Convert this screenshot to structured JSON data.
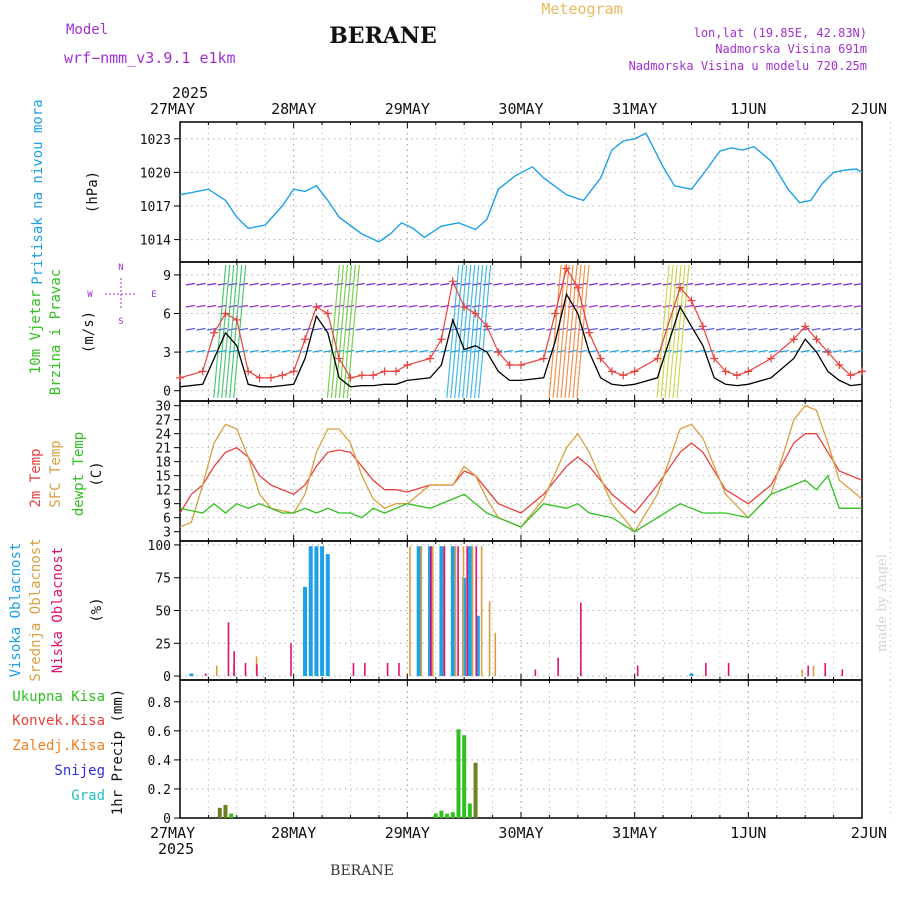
{
  "header": {
    "model_label": "Model",
    "model_name": "wrf−nmm_v3.9.1 e1km",
    "title": "BERANE",
    "subtitle": "Meteogram",
    "lonlat": "lon,lat (19.85E, 42.83N)",
    "elevation": "Nadmorska Visina 691m",
    "model_elevation": "Nadmorska Visina u modelu 720.25m",
    "year_top": "2025",
    "year_bottom": "2025",
    "footer_station": "BERANE",
    "credit": "made by Angel"
  },
  "colors": {
    "pressure": "#1ca0e6",
    "temp2m": "#e8403c",
    "sfc_temp": "#d8a040",
    "dewpoint": "#30c020",
    "high_cloud": "#1ca0e6",
    "mid_cloud": "#d8a040",
    "low_cloud": "#e01070",
    "total_precip": "#30c020",
    "conv_precip": "#e8403c",
    "frozen_precip": "#f08020",
    "snow": "#3030e0",
    "hail": "#20c0c0",
    "wind_speed": "#000000",
    "gust": "#e8403c",
    "label_purple": "#a030d0"
  },
  "chart_data": [
    {
      "type": "line",
      "title": "",
      "ylabel_parts": [
        "Pritisak na nivou mora",
        "(hPa)"
      ],
      "x_tick_labels": [
        "27MAY",
        "28MAY",
        "29MAY",
        "30MAY",
        "31MAY",
        "1JUN",
        "2JUN"
      ],
      "ylim": [
        1012,
        1024.5
      ],
      "yticks": [
        1014,
        1017,
        1020,
        1023
      ],
      "grid": true,
      "series": [
        {
          "key": "pressure",
          "x": [
            0,
            0.25,
            0.4,
            0.5,
            0.6,
            0.75,
            0.9,
            1.0,
            1.1,
            1.2,
            1.3,
            1.4,
            1.6,
            1.75,
            1.85,
            1.95,
            2.05,
            2.15,
            2.3,
            2.45,
            2.6,
            2.7,
            2.8,
            2.95,
            3.1,
            3.2,
            3.4,
            3.55,
            3.7,
            3.8,
            3.9,
            4.0,
            4.1,
            4.15,
            4.25,
            4.35,
            4.5,
            4.6,
            4.75,
            4.85,
            4.95,
            5.05,
            5.2,
            5.35,
            5.45,
            5.55,
            5.65,
            5.75,
            5.85,
            5.95,
            6.0
          ],
          "values": [
            1018.0,
            1018.5,
            1017.5,
            1016,
            1015,
            1015.3,
            1017,
            1018.5,
            1018.3,
            1018.8,
            1017.5,
            1016,
            1014.5,
            1013.8,
            1014.5,
            1015.5,
            1015.0,
            1014.2,
            1015.2,
            1015.5,
            1014.9,
            1015.8,
            1018.5,
            1019.7,
            1020.5,
            1019.5,
            1018.0,
            1017.5,
            1019.5,
            1022.0,
            1022.8,
            1023.0,
            1023.5,
            1022.5,
            1020.5,
            1018.8,
            1018.5,
            1019.8,
            1021.9,
            1022.2,
            1022.0,
            1022.3,
            1021.0,
            1018.5,
            1017.3,
            1017.5,
            1019.0,
            1020.0,
            1020.2,
            1020.3,
            1020.0
          ]
        }
      ]
    },
    {
      "type": "line",
      "title": "",
      "ylabel_parts": [
        "10m Vjetar",
        "Brzina i Pravac",
        "(m/s)"
      ],
      "compass": [
        "N",
        "W",
        "E",
        "S"
      ],
      "ylim": [
        -0.8,
        10
      ],
      "yticks": [
        0,
        3,
        6,
        9
      ],
      "grid": true,
      "series": [
        {
          "key": "wind_speed",
          "x": [
            0,
            0.2,
            0.3,
            0.4,
            0.5,
            0.6,
            0.7,
            0.8,
            0.9,
            1.0,
            1.1,
            1.2,
            1.3,
            1.4,
            1.5,
            1.6,
            1.7,
            1.8,
            1.9,
            2.0,
            2.2,
            2.3,
            2.4,
            2.5,
            2.6,
            2.7,
            2.8,
            2.9,
            3.0,
            3.2,
            3.3,
            3.4,
            3.5,
            3.6,
            3.7,
            3.8,
            3.9,
            4.0,
            4.2,
            4.4,
            4.5,
            4.6,
            4.7,
            4.8,
            4.9,
            5.0,
            5.2,
            5.4,
            5.5,
            5.6,
            5.7,
            5.8,
            5.9,
            6.0
          ],
          "values": [
            0.3,
            0.5,
            2.5,
            4.5,
            3.5,
            0.5,
            0.3,
            0.3,
            0.4,
            0.5,
            2.5,
            5.8,
            4.5,
            1.0,
            0.3,
            0.4,
            0.4,
            0.5,
            0.5,
            0.8,
            1.0,
            2.0,
            5.5,
            3.2,
            3.5,
            3.0,
            1.5,
            0.8,
            0.8,
            1.0,
            3.8,
            7.5,
            6.0,
            3.0,
            1.0,
            0.5,
            0.4,
            0.5,
            1.0,
            6.5,
            5.0,
            3.5,
            1.0,
            0.5,
            0.4,
            0.5,
            1.0,
            2.5,
            4.0,
            3.0,
            1.5,
            0.8,
            0.4,
            0.5
          ]
        },
        {
          "key": "gust",
          "x": [
            0,
            0.2,
            0.3,
            0.4,
            0.5,
            0.6,
            0.7,
            0.8,
            0.9,
            1.0,
            1.1,
            1.2,
            1.3,
            1.4,
            1.5,
            1.6,
            1.7,
            1.8,
            1.9,
            2.0,
            2.2,
            2.3,
            2.4,
            2.5,
            2.6,
            2.7,
            2.8,
            2.9,
            3.0,
            3.2,
            3.3,
            3.4,
            3.5,
            3.6,
            3.7,
            3.8,
            3.9,
            4.0,
            4.2,
            4.4,
            4.5,
            4.6,
            4.7,
            4.8,
            4.9,
            5.0,
            5.2,
            5.4,
            5.5,
            5.6,
            5.7,
            5.8,
            5.9,
            6.0
          ],
          "values": [
            1.0,
            1.5,
            4.5,
            6.0,
            5.5,
            1.5,
            1.0,
            1.0,
            1.2,
            1.5,
            4.0,
            6.5,
            6.0,
            2.5,
            1.0,
            1.2,
            1.2,
            1.5,
            1.5,
            2.0,
            2.5,
            4.0,
            8.5,
            6.5,
            6.0,
            5.0,
            3.0,
            2.0,
            2.0,
            2.5,
            6.0,
            9.5,
            8.0,
            4.5,
            2.5,
            1.5,
            1.2,
            1.5,
            2.5,
            8.0,
            7.0,
            5.0,
            2.5,
            1.5,
            1.2,
            1.5,
            2.5,
            4.0,
            5.0,
            4.0,
            3.0,
            2.0,
            1.2,
            1.5
          ]
        }
      ]
    },
    {
      "type": "line",
      "title": "",
      "ylabel_parts": [
        "2m Temp",
        "SFC Temp",
        "dewpt Temp",
        "(C)"
      ],
      "ylim": [
        1,
        31
      ],
      "yticks": [
        3,
        6,
        9,
        12,
        15,
        18,
        21,
        24,
        27,
        30
      ],
      "grid": true,
      "series": [
        {
          "key": "temp2m",
          "x": [
            0,
            0.1,
            0.2,
            0.3,
            0.4,
            0.5,
            0.6,
            0.7,
            0.8,
            0.9,
            1.0,
            1.1,
            1.2,
            1.3,
            1.4,
            1.5,
            1.6,
            1.7,
            1.8,
            1.9,
            2.0,
            2.2,
            2.4,
            2.5,
            2.6,
            2.7,
            2.8,
            3.0,
            3.2,
            3.4,
            3.5,
            3.6,
            3.8,
            4.0,
            4.2,
            4.4,
            4.5,
            4.6,
            4.8,
            5.0,
            5.2,
            5.4,
            5.5,
            5.6,
            5.7,
            5.8,
            6.0
          ],
          "values": [
            7,
            11,
            13,
            17,
            20,
            21,
            19,
            15,
            13,
            12,
            11,
            13,
            17,
            20,
            20.5,
            20,
            17,
            14,
            12,
            12,
            11.5,
            13,
            13,
            16,
            15,
            12,
            9,
            7,
            11,
            17,
            19,
            17,
            11,
            7,
            13,
            20,
            22,
            20,
            12,
            9,
            13,
            22,
            24,
            24,
            20,
            16,
            14
          ]
        },
        {
          "key": "sfc_temp",
          "x": [
            0,
            0.1,
            0.2,
            0.3,
            0.4,
            0.5,
            0.6,
            0.7,
            0.8,
            0.9,
            1.0,
            1.1,
            1.2,
            1.3,
            1.4,
            1.5,
            1.6,
            1.7,
            1.8,
            1.9,
            2.0,
            2.2,
            2.4,
            2.5,
            2.6,
            2.7,
            2.8,
            3.0,
            3.2,
            3.4,
            3.5,
            3.6,
            3.8,
            4.0,
            4.2,
            4.4,
            4.5,
            4.6,
            4.8,
            5.0,
            5.2,
            5.4,
            5.5,
            5.6,
            5.7,
            5.8,
            6.0
          ],
          "values": [
            4,
            5,
            13,
            22,
            26,
            25,
            19,
            11,
            8,
            7.5,
            7,
            11,
            20,
            25,
            25,
            22,
            15,
            10,
            8,
            9,
            9,
            13,
            13,
            17,
            15,
            10,
            6,
            4,
            10,
            21,
            24,
            20,
            9,
            3,
            11,
            25,
            26,
            23,
            11,
            6,
            11,
            27,
            30,
            29,
            22,
            14,
            10
          ]
        },
        {
          "key": "dewpoint",
          "x": [
            0,
            0.2,
            0.3,
            0.4,
            0.5,
            0.6,
            0.7,
            0.8,
            0.9,
            1.0,
            1.1,
            1.2,
            1.3,
            1.4,
            1.5,
            1.6,
            1.7,
            1.8,
            1.9,
            2.0,
            2.2,
            2.4,
            2.5,
            2.6,
            2.7,
            2.8,
            3.0,
            3.2,
            3.4,
            3.5,
            3.6,
            3.8,
            4.0,
            4.2,
            4.4,
            4.5,
            4.6,
            4.8,
            5.0,
            5.2,
            5.4,
            5.5,
            5.6,
            5.7,
            5.8,
            6.0
          ],
          "values": [
            8,
            7,
            9,
            7,
            9,
            8,
            9,
            8,
            7,
            7,
            8,
            7,
            8,
            7,
            7,
            6,
            8,
            7,
            8,
            9,
            8,
            10,
            11,
            9,
            7,
            6,
            4,
            9,
            8,
            9,
            7,
            6,
            3,
            6,
            9,
            8,
            7,
            7,
            6,
            11,
            13,
            14,
            12,
            15,
            8,
            8
          ]
        }
      ]
    },
    {
      "type": "bar",
      "title": "",
      "ylabel_parts": [
        "Visoka Oblacnost",
        "Srednja Oblacnost",
        "Niska Oblacnost",
        "(%)"
      ],
      "ylim": [
        -3,
        103
      ],
      "yticks": [
        0,
        25,
        50,
        75,
        100
      ],
      "grid": true,
      "series": [
        {
          "key": "high_cloud",
          "x": [
            0.1,
            1.1,
            1.15,
            1.2,
            1.25,
            1.3,
            2.1,
            2.2,
            2.3,
            2.4,
            2.5,
            2.55,
            2.62,
            4.5
          ],
          "values": [
            2,
            68,
            99,
            99,
            99,
            93,
            99,
            99,
            99,
            99,
            75,
            99,
            46,
            2
          ]
        },
        {
          "key": "mid_cloud",
          "x": [
            0.35,
            0.5,
            0.7,
            2.05,
            2.15,
            2.25,
            2.35,
            2.45,
            2.52,
            2.6,
            2.68,
            2.75,
            2.8,
            5.5,
            5.6
          ],
          "values": [
            8,
            9,
            15,
            99,
            99,
            99,
            99,
            99,
            99,
            99,
            99,
            57,
            33,
            5,
            8
          ]
        },
        {
          "key": "low_cloud",
          "x": [
            0.2,
            0.4,
            0.45,
            0.55,
            0.65,
            0.95,
            1.5,
            1.6,
            1.8,
            1.9,
            2.18,
            2.3,
            2.42,
            2.5,
            2.58,
            3.1,
            3.3,
            3.5,
            4.0,
            4.6,
            4.8,
            5.5,
            5.65,
            5.8
          ],
          "values": [
            2,
            41,
            19,
            10,
            9,
            25,
            10,
            10,
            10,
            10,
            99,
            99,
            99,
            99,
            99,
            5,
            14,
            56,
            8,
            10,
            10,
            8,
            10,
            5
          ]
        }
      ]
    },
    {
      "type": "bar",
      "title": "",
      "ylabel_parts": [
        "1hr Precip (mm)"
      ],
      "legend": [
        "Ukupna Kisa",
        "Konvek.Kisa",
        "Zaledj.Kisa",
        "Snijeg",
        "Grad"
      ],
      "ylim": [
        0,
        0.95
      ],
      "yticks": [
        0,
        0.2,
        0.4,
        0.6,
        0.8
      ],
      "grid": true,
      "series": [
        {
          "key": "total_precip",
          "x": [
            0.35,
            0.4,
            0.45,
            2.25,
            2.3,
            2.35,
            2.4,
            2.45,
            2.5,
            2.55,
            2.6
          ],
          "values": [
            0.07,
            0.09,
            0.03,
            0.03,
            0.05,
            0.03,
            0.04,
            0.61,
            0.57,
            0.1,
            0.38
          ]
        }
      ]
    }
  ]
}
